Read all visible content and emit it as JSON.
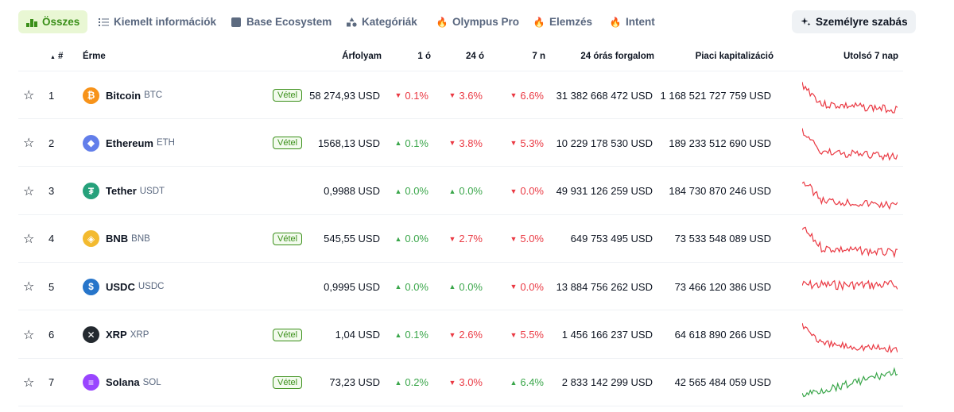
{
  "tabs": [
    {
      "label": "Összes",
      "icon": "bars-icon"
    },
    {
      "label": "Kiemelt információk",
      "icon": "list-icon"
    },
    {
      "label": "Base Ecosystem",
      "icon": "square-icon"
    },
    {
      "label": "Kategóriák",
      "icon": "shapes-icon"
    },
    {
      "label": "Olympus Pro",
      "icon": "fire-icon"
    },
    {
      "label": "Elemzés",
      "icon": "fire-icon"
    },
    {
      "label": "Intent",
      "icon": "fire-icon"
    }
  ],
  "customize_label": "Személyre szabás",
  "headers": {
    "rank": "#",
    "coin": "Érme",
    "price": "Árfolyam",
    "h1": "1 ó",
    "h24": "24 ó",
    "d7": "7 n",
    "volume": "24 órás forgalom",
    "mcap": "Piaci kapitalizáció",
    "last7": "Utolsó 7 nap"
  },
  "buy_label": "Vétel",
  "colors": {
    "up": "#16c784",
    "down": "#ea3943",
    "accent": "#3a8f19"
  },
  "rows": [
    {
      "rank": "1",
      "name": "Bitcoin",
      "symbol": "BTC",
      "icon": "bitcoin-icon",
      "icon_color": "#f7931a",
      "buy": true,
      "price": "58 274,93 USD",
      "h1": "0.1%",
      "h1_dir": "down",
      "h24": "3.6%",
      "h24_dir": "down",
      "d7": "6.6%",
      "d7_dir": "down",
      "volume": "31 382 668 472 USD",
      "mcap": "1 168 521 727 759 USD",
      "trend": "down"
    },
    {
      "rank": "2",
      "name": "Ethereum",
      "symbol": "ETH",
      "icon": "ethereum-icon",
      "icon_color": "#627eea",
      "buy": true,
      "price": "1568,13 USD",
      "h1": "0.1%",
      "h1_dir": "up",
      "h24": "3.8%",
      "h24_dir": "down",
      "d7": "5.3%",
      "d7_dir": "down",
      "volume": "10 229 178 530 USD",
      "mcap": "189 233 512 690 USD",
      "trend": "down"
    },
    {
      "rank": "3",
      "name": "Tether",
      "symbol": "USDT",
      "icon": "tether-icon",
      "icon_color": "#26a17b",
      "buy": false,
      "price": "0,9988 USD",
      "h1": "0.0%",
      "h1_dir": "up",
      "h24": "0.0%",
      "h24_dir": "up",
      "d7": "0.0%",
      "d7_dir": "down",
      "volume": "49 931 126 259 USD",
      "mcap": "184 730 870 246 USD",
      "trend": "down"
    },
    {
      "rank": "4",
      "name": "BNB",
      "symbol": "BNB",
      "icon": "bnb-icon",
      "icon_color": "#f3ba2f",
      "buy": true,
      "price": "545,55 USD",
      "h1": "0.0%",
      "h1_dir": "up",
      "h24": "2.7%",
      "h24_dir": "down",
      "d7": "5.0%",
      "d7_dir": "down",
      "volume": "649 753 495 USD",
      "mcap": "73 533 548 089 USD",
      "trend": "down"
    },
    {
      "rank": "5",
      "name": "USDC",
      "symbol": "USDC",
      "icon": "usdc-icon",
      "icon_color": "#2775ca",
      "buy": false,
      "price": "0,9995 USD",
      "h1": "0.0%",
      "h1_dir": "up",
      "h24": "0.0%",
      "h24_dir": "up",
      "d7": "0.0%",
      "d7_dir": "down",
      "volume": "13 884 756 262 USD",
      "mcap": "73 466 120 386 USD",
      "trend": "flat"
    },
    {
      "rank": "6",
      "name": "XRP",
      "symbol": "XRP",
      "icon": "xrp-icon",
      "icon_color": "#23292f",
      "buy": true,
      "price": "1,04 USD",
      "h1": "0.1%",
      "h1_dir": "up",
      "h24": "2.6%",
      "h24_dir": "down",
      "d7": "5.5%",
      "d7_dir": "down",
      "volume": "1 456 166 237 USD",
      "mcap": "64 618 890 266 USD",
      "trend": "down"
    },
    {
      "rank": "7",
      "name": "Solana",
      "symbol": "SOL",
      "icon": "solana-icon",
      "icon_color": "#9945ff",
      "buy": true,
      "price": "73,23 USD",
      "h1": "0.2%",
      "h1_dir": "up",
      "h24": "3.0%",
      "h24_dir": "down",
      "d7": "6.4%",
      "d7_dir": "up",
      "volume": "2 833 142 299 USD",
      "mcap": "42 565 484 059 USD",
      "trend": "up"
    }
  ]
}
